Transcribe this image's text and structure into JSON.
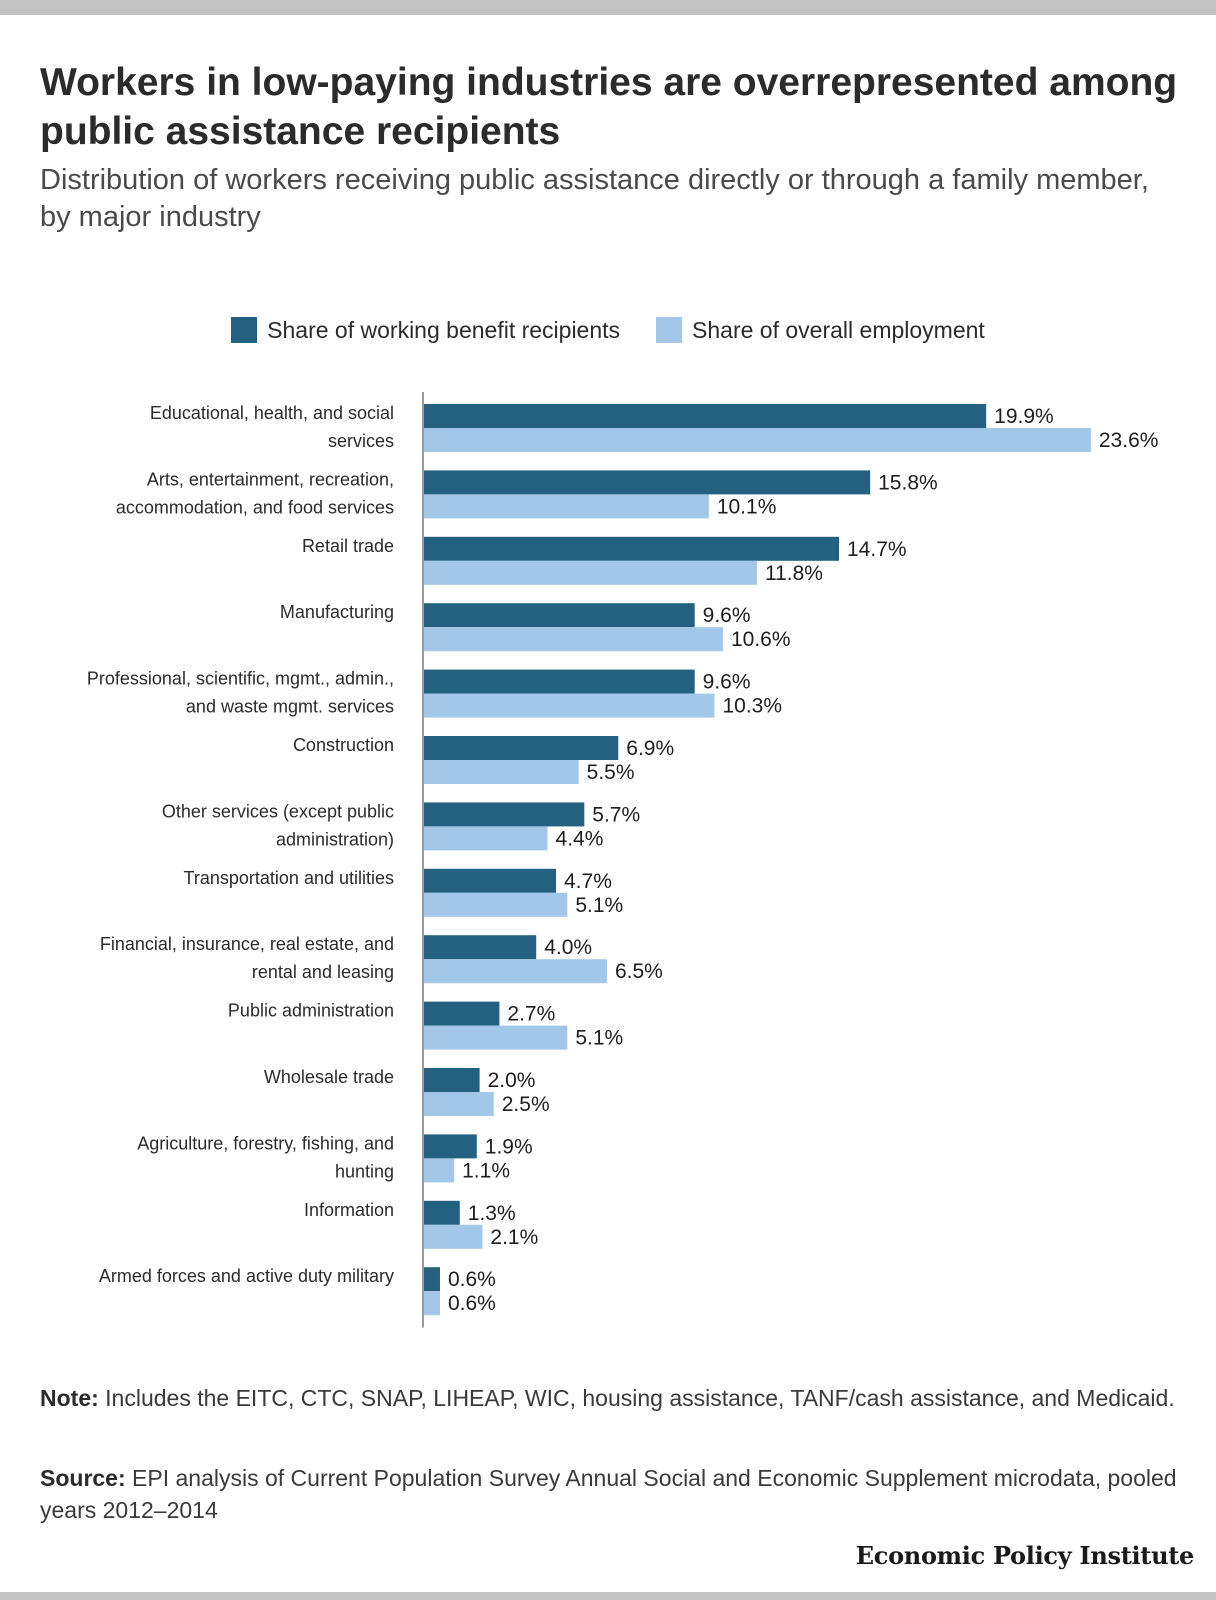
{
  "title": "Workers in low-paying industries are overrepresented among public assistance recipients",
  "subtitle": "Distribution of workers receiving public assistance directly or through a family member, by major industry",
  "note_label": "Note:",
  "note_text": " Includes the EITC, CTC, SNAP, LIHEAP, WIC, housing assistance, TANF/cash assistance, and Medicaid.",
  "source_label": "Source:",
  "source_text": " EPI analysis of Current Population Survey Annual Social and Economic Supplement microdata, pooled years 2012–2014",
  "brand": "Economic Policy Institute",
  "colors": {
    "dark": "#24607f",
    "light": "#a3c7e8",
    "axis": "#9a9a9a"
  },
  "chart_data": {
    "type": "bar",
    "orientation": "horizontal",
    "legend_position": "top-center",
    "value_format": "percent",
    "categories": [
      [
        "Educational, health, and social",
        "services"
      ],
      [
        "Arts, entertainment, recreation,",
        "accommodation, and food services"
      ],
      [
        "Retail trade"
      ],
      [
        "Manufacturing"
      ],
      [
        "Professional, scientific, mgmt., admin.,",
        "and waste mgmt. services"
      ],
      [
        "Construction"
      ],
      [
        "Other services (except public",
        "administration)"
      ],
      [
        "Transportation and utilities"
      ],
      [
        "Financial, insurance, real estate, and",
        "rental and leasing"
      ],
      [
        "Public administration"
      ],
      [
        "Wholesale trade"
      ],
      [
        "Agriculture, forestry, fishing, and",
        "hunting"
      ],
      [
        "Information"
      ],
      [
        "Armed forces and active duty military"
      ]
    ],
    "series": [
      {
        "name": "Share of working benefit recipients",
        "color": "#24607f",
        "values": [
          19.9,
          15.8,
          14.7,
          9.6,
          9.6,
          6.9,
          5.7,
          4.7,
          4.0,
          2.7,
          2.0,
          1.9,
          1.3,
          0.6
        ],
        "labels": [
          "19.9%",
          "15.8%",
          "14.7%",
          "9.6%",
          "9.6%",
          "6.9%",
          "5.7%",
          "4.7%",
          "4.0%",
          "2.7%",
          "2.0%",
          "1.9%",
          "1.3%",
          "0.6%"
        ]
      },
      {
        "name": "Share of overall employment",
        "color": "#a3c7e8",
        "values": [
          23.6,
          10.1,
          11.8,
          10.6,
          10.3,
          5.5,
          4.4,
          5.1,
          6.5,
          5.1,
          2.5,
          1.1,
          2.1,
          0.6
        ],
        "labels": [
          "23.6%",
          "10.1%",
          "11.8%",
          "10.6%",
          "10.3%",
          "5.5%",
          "4.4%",
          "5.1%",
          "6.5%",
          "5.1%",
          "2.5%",
          "1.1%",
          "2.1%",
          "0.6%"
        ]
      }
    ],
    "xlim": [
      0,
      25
    ],
    "grid": false
  }
}
